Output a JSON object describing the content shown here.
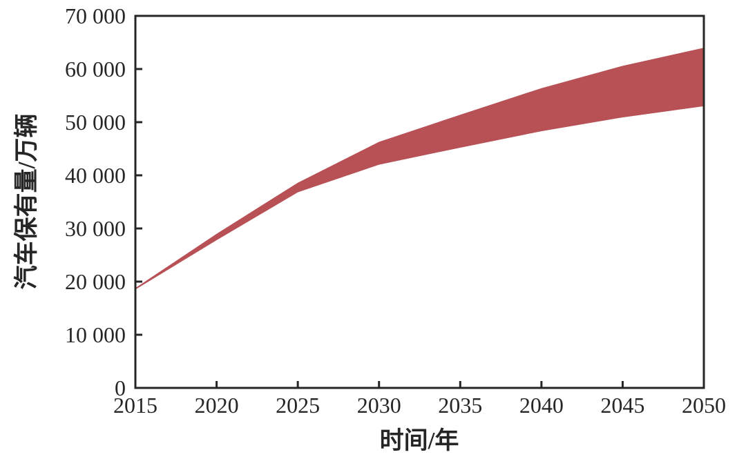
{
  "chart_data": {
    "type": "area",
    "title": "",
    "xlabel": "时间/年",
    "ylabel": "汽车保有量/万辆",
    "x": [
      2015,
      2020,
      2025,
      2030,
      2035,
      2040,
      2045,
      2050
    ],
    "series": [
      {
        "name": "upper_bound",
        "values": [
          18800,
          29000,
          38600,
          46300,
          51400,
          56400,
          60600,
          64000
        ]
      },
      {
        "name": "lower_bound",
        "values": [
          18500,
          27800,
          36800,
          42000,
          45200,
          48300,
          50900,
          53000
        ]
      }
    ],
    "band_color": "#b85156",
    "axis_color": "#262626",
    "background_color": "#ffffff",
    "xlim": [
      2015,
      2050
    ],
    "ylim": [
      0,
      70000
    ],
    "xticks": {
      "values": [
        2015,
        2020,
        2025,
        2030,
        2035,
        2040,
        2045,
        2050
      ],
      "labels": [
        "2015",
        "2020",
        "2025",
        "2030",
        "2035",
        "2040",
        "2045",
        "2050"
      ]
    },
    "yticks": {
      "values": [
        0,
        10000,
        20000,
        30000,
        40000,
        50000,
        60000,
        70000
      ],
      "labels": [
        "0",
        "10 000",
        "20 000",
        "30 000",
        "40 000",
        "50 000",
        "60 000",
        "70 000"
      ]
    },
    "grid": false,
    "legend_position": "none"
  }
}
